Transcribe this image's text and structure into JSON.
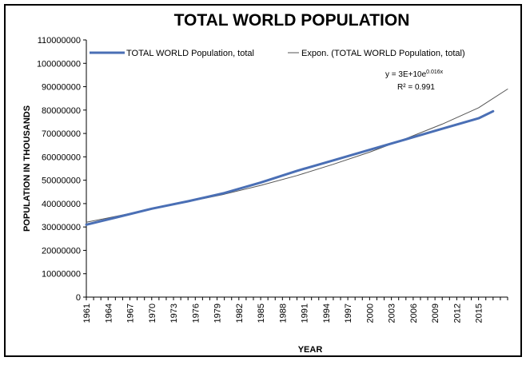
{
  "chart_data": {
    "type": "line",
    "title": "TOTAL WORLD POPULATION",
    "xlabel": "YEAR",
    "ylabel": "POPULATION IN THOUSANDS",
    "ylim": [
      0,
      110000000
    ],
    "xlim": [
      1961,
      2019
    ],
    "y_ticks": [
      "0",
      "10000000",
      "20000000",
      "30000000",
      "40000000",
      "50000000",
      "60000000",
      "70000000",
      "80000000",
      "90000000",
      "100000000",
      "110000000"
    ],
    "x_ticks": [
      "1961",
      "1964",
      "1967",
      "1970",
      "1973",
      "1976",
      "1979",
      "1982",
      "1985",
      "1988",
      "1991",
      "1994",
      "1997",
      "2000",
      "2003",
      "2006",
      "2009",
      "2012",
      "2015"
    ],
    "grid": false,
    "legend_position": "top",
    "series": [
      {
        "name": "TOTAL WORLD Population, total",
        "color": "#4a6fb5",
        "x": [
          1961,
          1965,
          1970,
          1975,
          1980,
          1985,
          1990,
          1995,
          2000,
          2005,
          2010,
          2015,
          2017
        ],
        "y": [
          31000000,
          34000000,
          37800000,
          41000000,
          44500000,
          49000000,
          54000000,
          58500000,
          63000000,
          67500000,
          72000000,
          76500000,
          79500000
        ]
      },
      {
        "name": "Expon. (TOTAL WORLD Population, total)",
        "color": "#555555",
        "trendline": true,
        "x": [
          1961,
          1965,
          1970,
          1975,
          1980,
          1985,
          1990,
          1995,
          2000,
          2005,
          2010,
          2015,
          2019
        ],
        "y": [
          32000000,
          34500000,
          37700000,
          40800000,
          44000000,
          47800000,
          52000000,
          56800000,
          62000000,
          67800000,
          74000000,
          81000000,
          89000000
        ]
      }
    ],
    "annotation": {
      "equation_base": "y = 3E+10e",
      "equation_exp": "0.016x",
      "r2": "R² = 0.991"
    }
  }
}
